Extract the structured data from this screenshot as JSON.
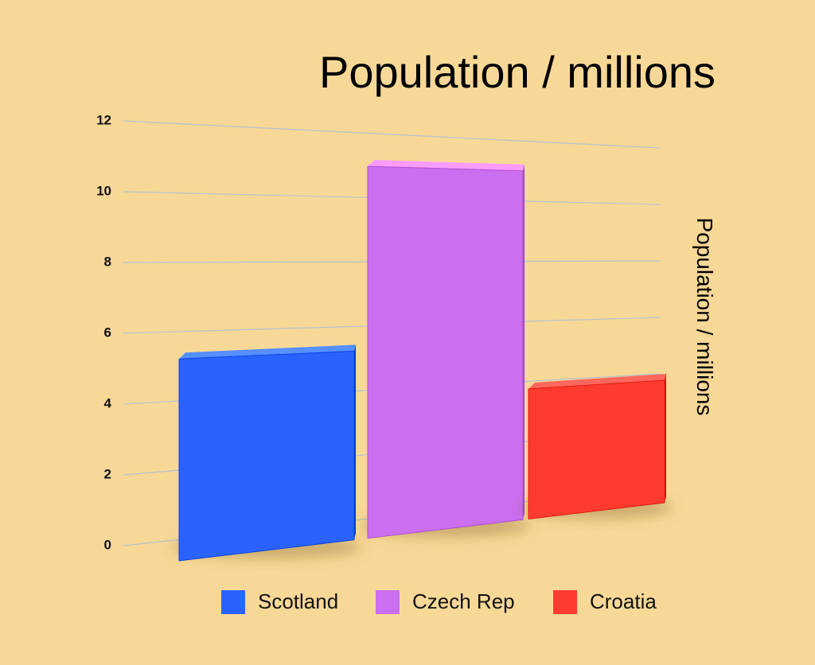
{
  "chart_data": {
    "type": "bar3d",
    "title": "Population / millions",
    "y_label": "Population / millions",
    "series": [
      {
        "name": "Scotland",
        "color": "#2962ff",
        "values": [
          5.4
        ]
      },
      {
        "name": "Czech Rep",
        "color": "#cc6ef0",
        "values": [
          10.7
        ]
      },
      {
        "name": "Croatia",
        "color": "#ff3b30",
        "values": [
          4.0
        ]
      }
    ],
    "ylim": [
      0,
      12
    ],
    "yticks": [
      0,
      2,
      4,
      6,
      8,
      10,
      12
    ],
    "grid": true,
    "legend": "bottom"
  }
}
